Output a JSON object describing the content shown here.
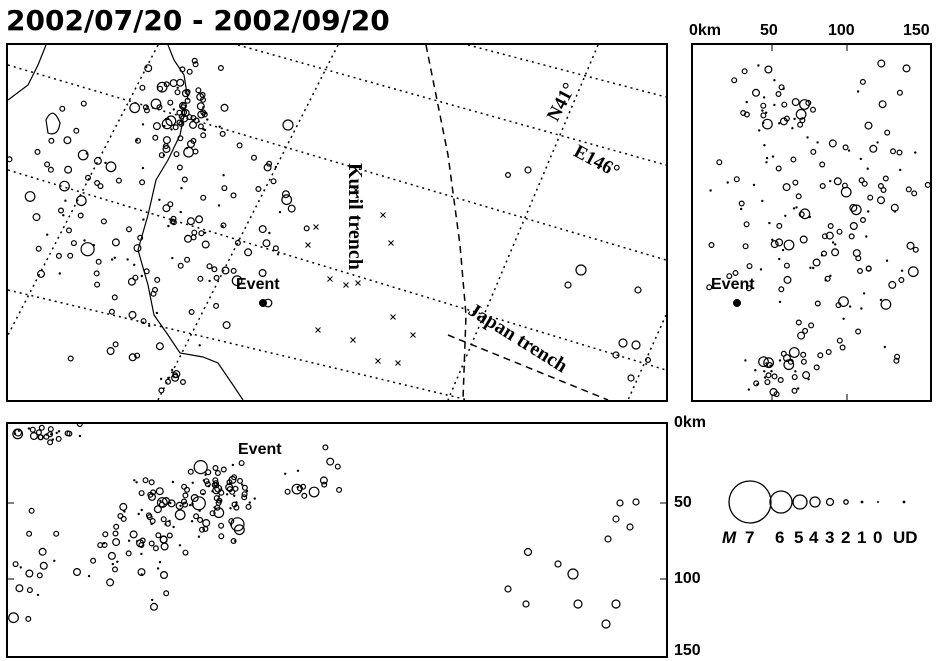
{
  "title": "2002/07/20 - 2002/09/20",
  "map": {
    "labels": {
      "kuril": "Kuril trench",
      "japan": "Japan trench",
      "lat": "N41°",
      "lon": "E146°",
      "event": "Event"
    }
  },
  "ns_section": {
    "axis_ticks": [
      "0km",
      "50",
      "100",
      "150"
    ],
    "event": "Event"
  },
  "depth_section": {
    "event": "Event",
    "depth_ticks": [
      "0km",
      "50",
      "100",
      "150"
    ]
  },
  "legend": {
    "magnitude_symbol": "M",
    "scale_labels": [
      "7",
      "6",
      "5",
      "4",
      "3",
      "2",
      "1",
      "0",
      "UD"
    ]
  }
}
